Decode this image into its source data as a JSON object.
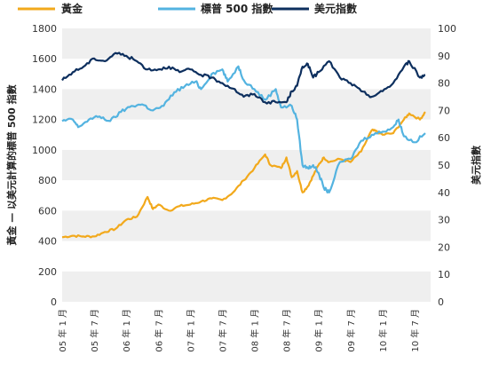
{
  "chart_data": {
    "type": "line",
    "legend_position": "top-left",
    "grid": "alternating-bands",
    "legend": [
      {
        "name": "黃金",
        "color": "#f2a91c"
      },
      {
        "name": "標普 500 指數",
        "color": "#53b3e0"
      },
      {
        "name": "美元指數",
        "color": "#0d2f5e"
      }
    ],
    "y_left": {
      "label": "黃金 — 以美元計算的標普 500 指數",
      "min": 0,
      "max": 1800,
      "ticks": [
        "0",
        "200",
        "400",
        "600",
        "800",
        "1000",
        "1200",
        "1400",
        "1600",
        "1800"
      ]
    },
    "y_right": {
      "label": "美元指數",
      "min": 0,
      "max": 100,
      "ticks": [
        "0",
        "10",
        "20",
        "30",
        "40",
        "50",
        "60",
        "70",
        "80",
        "90",
        "100"
      ]
    },
    "x_ticks": [
      "05 年 1 月",
      "05 年 7 月",
      "06 年 1 月",
      "06 年 7 月",
      "07 年 1 月",
      "07 年 7 月",
      "08 年 1 月",
      "08 年 7 月",
      "09 年 1 月",
      "09 年 7 月",
      "10 年 1 月",
      "10 年 7 月"
    ],
    "series": [
      {
        "name": "黃金",
        "color": "#f2a91c",
        "axis": "left",
        "x": [
          "2005-01",
          "2005-03",
          "2005-05",
          "2005-07",
          "2005-09",
          "2005-11",
          "2006-01",
          "2006-03",
          "2006-05",
          "2006-06",
          "2006-07",
          "2006-09",
          "2006-11",
          "2007-01",
          "2007-03",
          "2007-05",
          "2007-07",
          "2007-09",
          "2007-11",
          "2008-01",
          "2008-03",
          "2008-04",
          "2008-06",
          "2008-07",
          "2008-08",
          "2008-09",
          "2008-10",
          "2008-11",
          "2008-12",
          "2009-01",
          "2009-02",
          "2009-03",
          "2009-05",
          "2009-07",
          "2009-09",
          "2009-11",
          "2009-12",
          "2010-01",
          "2010-03",
          "2010-05",
          "2010-06",
          "2010-08",
          "2010-09"
        ],
        "values": [
          425,
          435,
          430,
          430,
          460,
          480,
          540,
          560,
          690,
          610,
          640,
          600,
          630,
          640,
          660,
          680,
          670,
          720,
          800,
          880,
          970,
          900,
          880,
          950,
          820,
          860,
          720,
          760,
          830,
          900,
          950,
          920,
          940,
          920,
          990,
          1130,
          1120,
          1100,
          1110,
          1200,
          1240,
          1200,
          1250
        ]
      },
      {
        "name": "標普 500 指數",
        "color": "#53b3e0",
        "axis": "left",
        "x": [
          "2005-01",
          "2005-03",
          "2005-04",
          "2005-06",
          "2005-08",
          "2005-10",
          "2005-12",
          "2006-02",
          "2006-04",
          "2006-06",
          "2006-08",
          "2006-10",
          "2006-12",
          "2007-02",
          "2007-03",
          "2007-05",
          "2007-07",
          "2007-08",
          "2007-10",
          "2007-11",
          "2008-01",
          "2008-03",
          "2008-05",
          "2008-06",
          "2008-08",
          "2008-09",
          "2008-10",
          "2008-11",
          "2008-12",
          "2009-01",
          "2009-02",
          "2009-03",
          "2009-05",
          "2009-07",
          "2009-09",
          "2009-11",
          "2010-01",
          "2010-03",
          "2010-04",
          "2010-05",
          "2010-07",
          "2010-09"
        ],
        "values": [
          1190,
          1200,
          1150,
          1200,
          1220,
          1190,
          1250,
          1290,
          1300,
          1260,
          1290,
          1380,
          1420,
          1450,
          1400,
          1500,
          1530,
          1450,
          1550,
          1460,
          1400,
          1330,
          1400,
          1280,
          1290,
          1200,
          900,
          880,
          900,
          850,
          750,
          720,
          920,
          940,
          1060,
          1100,
          1120,
          1150,
          1200,
          1090,
          1050,
          1110
        ]
      },
      {
        "name": "美元指數",
        "color": "#0d2f5e",
        "axis": "right",
        "x": [
          "2005-01",
          "2005-03",
          "2005-05",
          "2005-07",
          "2005-09",
          "2005-11",
          "2006-01",
          "2006-03",
          "2006-05",
          "2006-07",
          "2006-09",
          "2006-11",
          "2007-01",
          "2007-03",
          "2007-05",
          "2007-07",
          "2007-09",
          "2007-11",
          "2008-01",
          "2008-03",
          "2008-05",
          "2008-07",
          "2008-08",
          "2008-09",
          "2008-10",
          "2008-11",
          "2008-12",
          "2009-01",
          "2009-03",
          "2009-05",
          "2009-07",
          "2009-09",
          "2009-11",
          "2010-01",
          "2010-03",
          "2010-05",
          "2010-06",
          "2010-08",
          "2010-09"
        ],
        "values": [
          81,
          84,
          86,
          89,
          88,
          91,
          90,
          88,
          85,
          85,
          86,
          84,
          85,
          83,
          82,
          80,
          78,
          75,
          76,
          73,
          73,
          73,
          77,
          79,
          86,
          87,
          82,
          84,
          88,
          82,
          80,
          77,
          75,
          77,
          80,
          86,
          88,
          82,
          83
        ]
      }
    ]
  }
}
